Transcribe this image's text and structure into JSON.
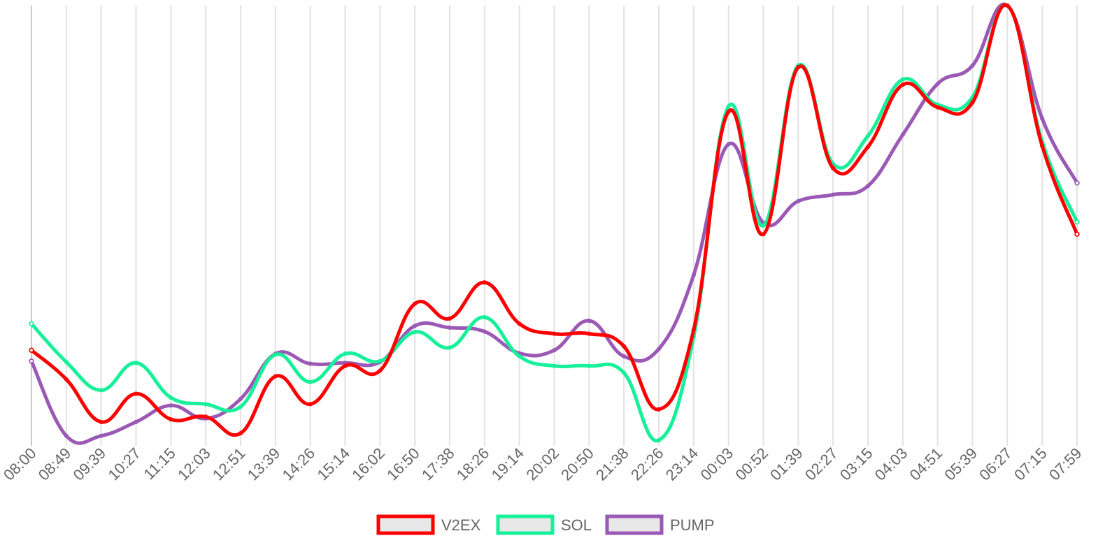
{
  "chart_data": {
    "type": "line",
    "x": [
      "08:00",
      "08:49",
      "09:39",
      "10:27",
      "11:15",
      "12:03",
      "12:51",
      "13:39",
      "14:26",
      "15:14",
      "16:02",
      "16:50",
      "17:38",
      "18:26",
      "19:14",
      "20:02",
      "20:50",
      "21:38",
      "22:26",
      "23:14",
      "00:03",
      "00:52",
      "01:39",
      "02:27",
      "03:15",
      "04:03",
      "04:51",
      "05:39",
      "06:27",
      "07:15",
      "07:59"
    ],
    "ylim": [
      0,
      100
    ],
    "grid": "vertical",
    "legend_placement": "bottom",
    "series": [
      {
        "name": "V2EX",
        "color": "#ff0000",
        "values": [
          20.7,
          14.0,
          4.2,
          10.7,
          4.8,
          5.4,
          1.6,
          14.7,
          8.3,
          17.1,
          16.0,
          31.4,
          28.0,
          36.3,
          26.8,
          24.5,
          24.5,
          21.6,
          7.1,
          25.4,
          75.6,
          47.4,
          85.8,
          62.6,
          67.5,
          81.8,
          76.6,
          77.7,
          100.0,
          67.7,
          47.4
        ]
      },
      {
        "name": "SOL",
        "color": "#16f09a",
        "values": [
          26.8,
          18.0,
          11.5,
          17.8,
          9.8,
          8.3,
          7.7,
          19.7,
          13.4,
          19.9,
          18.2,
          24.9,
          21.3,
          28.3,
          19.3,
          17.1,
          17.1,
          15.5,
          0.0,
          23.8,
          76.8,
          49.4,
          86.2,
          63.6,
          70.0,
          83.0,
          77.2,
          78.9,
          100.0,
          68.7,
          50.2
        ]
      },
      {
        "name": "PUMP",
        "color": "#9b59b6",
        "values": [
          18.2,
          1.0,
          1.0,
          4.2,
          8.0,
          5.0,
          9.5,
          19.9,
          17.6,
          17.8,
          18.0,
          26.3,
          25.9,
          25.0,
          20.0,
          20.7,
          27.5,
          19.3,
          21.0,
          38.0,
          68.1,
          50.0,
          55.0,
          56.5,
          58.5,
          70.3,
          82.0,
          86.2,
          100.0,
          74.0,
          59.2
        ]
      }
    ]
  }
}
